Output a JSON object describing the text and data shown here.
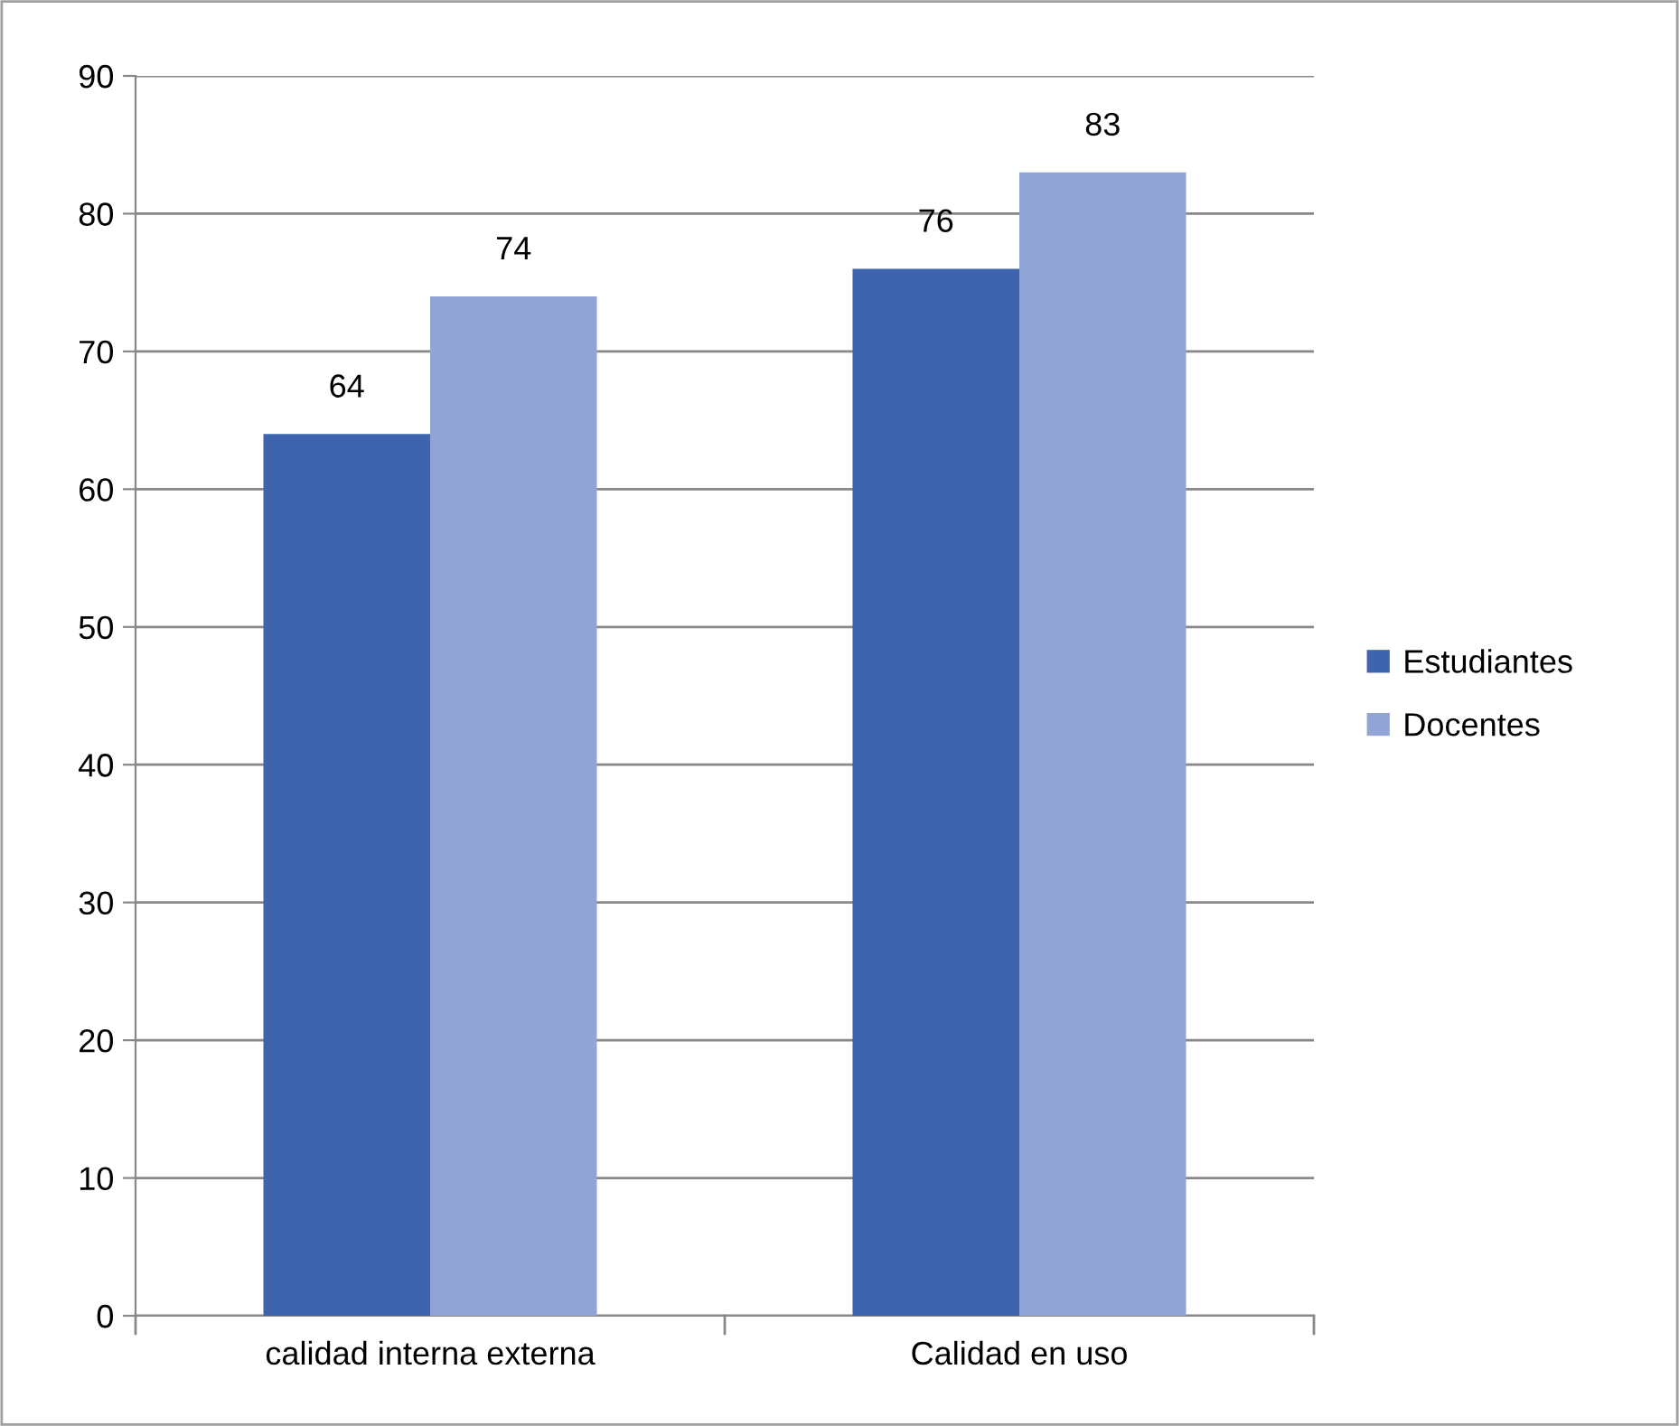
{
  "chart_data": {
    "type": "bar",
    "categories": [
      "calidad interna externa",
      "Calidad en uso"
    ],
    "series": [
      {
        "name": "Estudiantes",
        "color": "#3d64ad",
        "values": [
          64,
          76
        ]
      },
      {
        "name": "Docentes",
        "color": "#91a5d5",
        "values": [
          74,
          83
        ]
      }
    ],
    "ylim": [
      0,
      90
    ],
    "yticks": [
      0,
      10,
      20,
      30,
      40,
      50,
      60,
      70,
      80,
      90
    ],
    "grid": "y",
    "legend": "right",
    "data_labels": true
  }
}
